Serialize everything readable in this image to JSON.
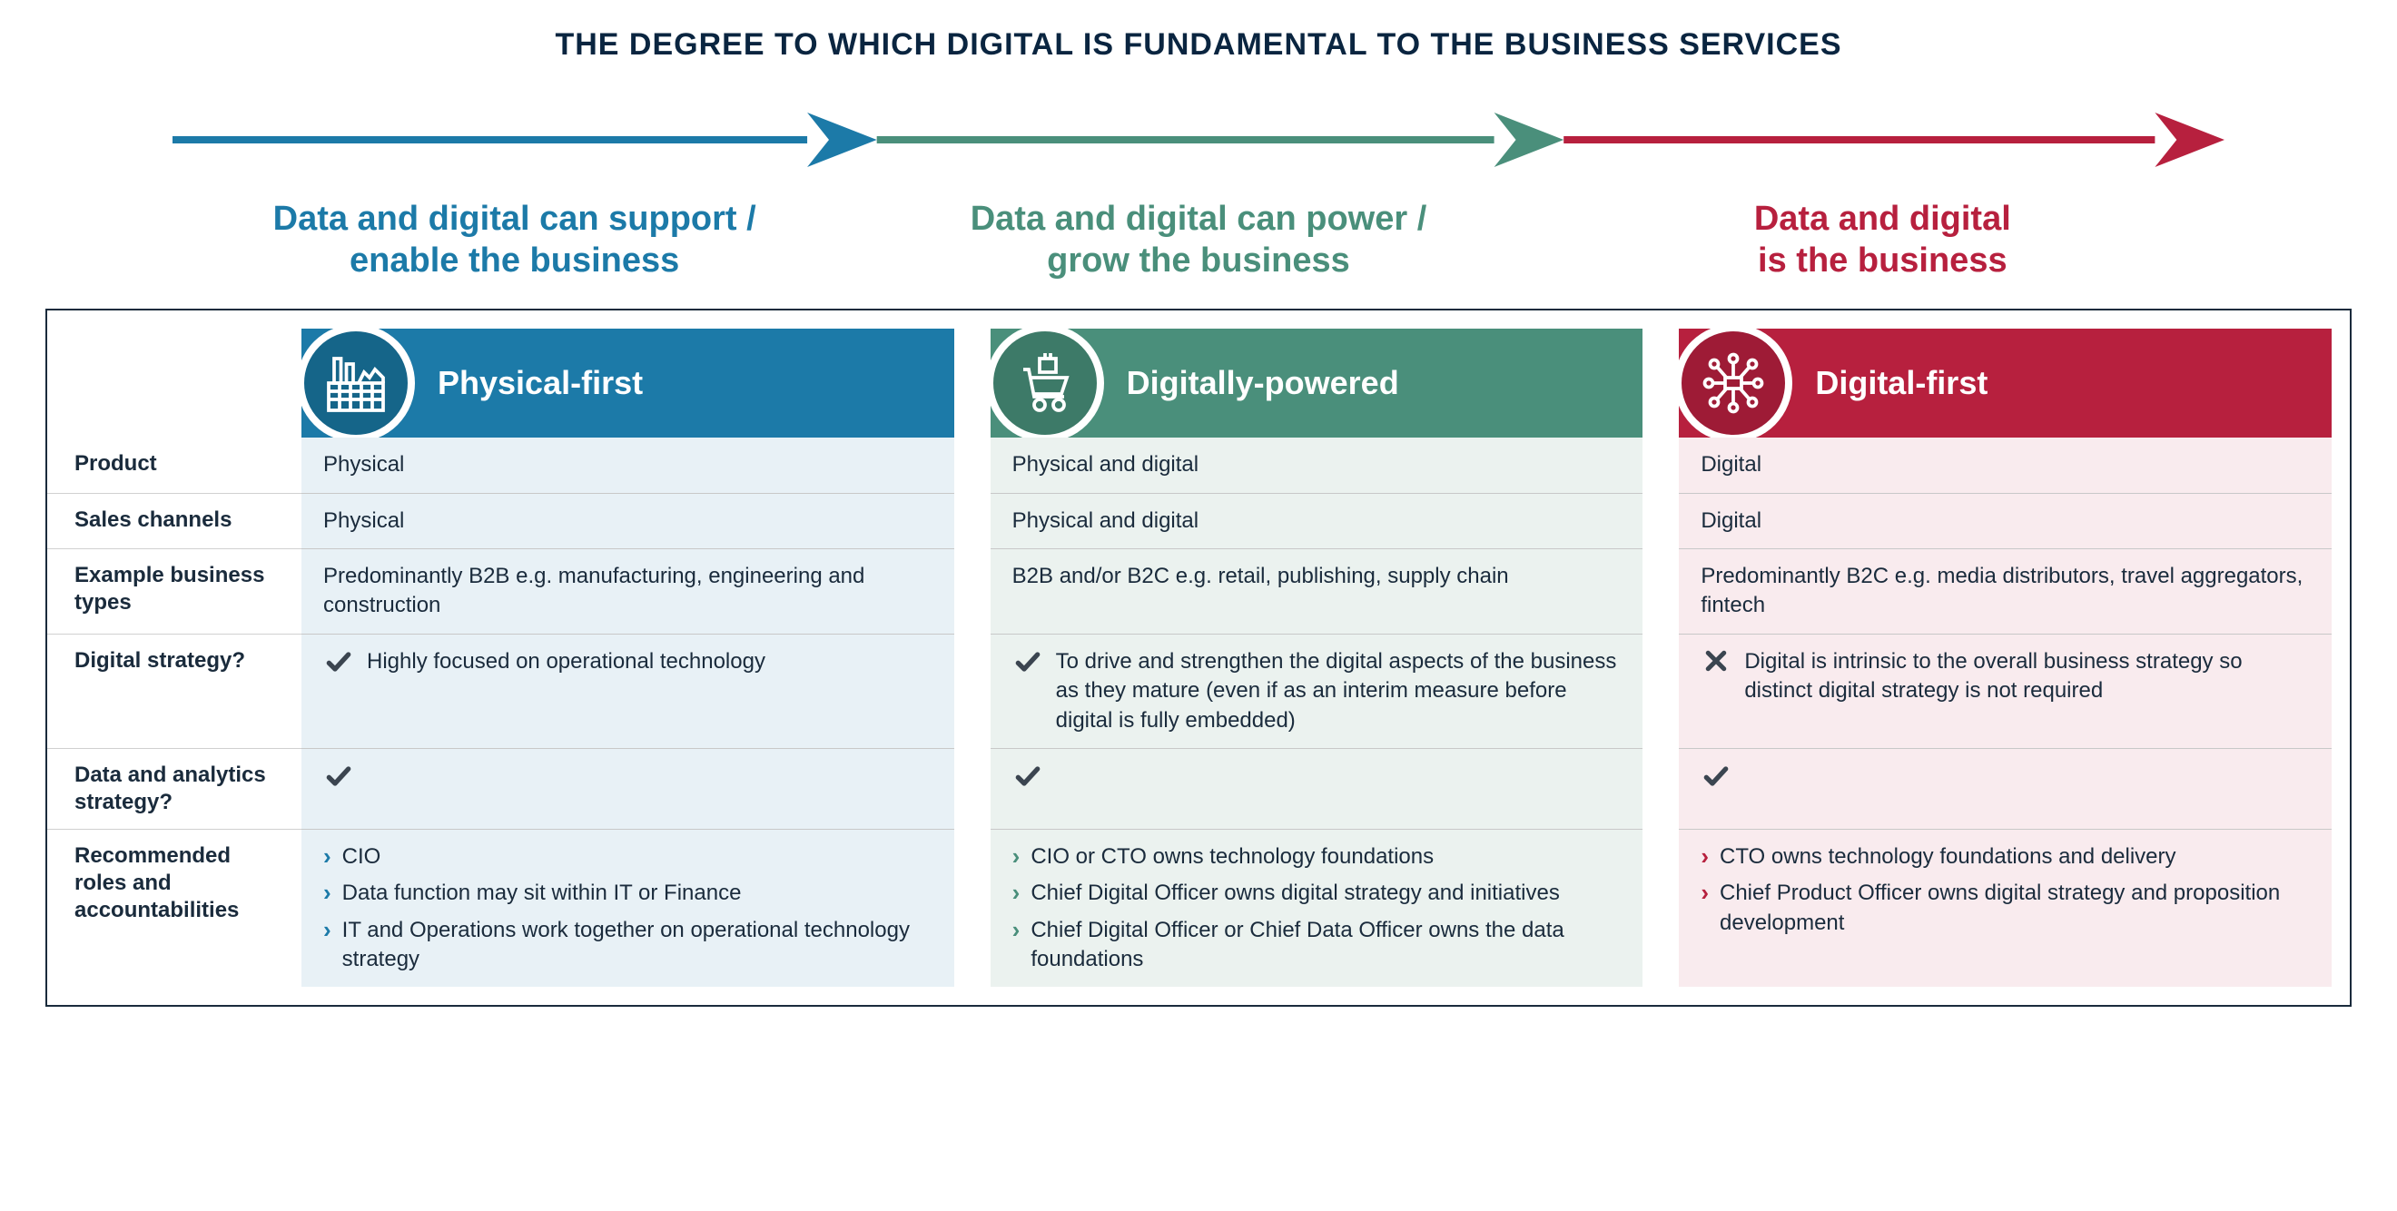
{
  "title": "THE DEGREE TO WHICH DIGITAL IS FUNDAMENTAL TO THE BUSINESS SERVICES",
  "colors": {
    "blue": "#1c7aa8",
    "blue_dark": "#156589",
    "green": "#4a8f7b",
    "green_dark": "#3d7a68",
    "red": "#b7203e",
    "red_dark": "#9e1b36",
    "text_dark": "#1a2b3c",
    "blue_tint": "#e8f1f6",
    "green_tint": "#ebf2ef",
    "red_tint": "#f9ebee",
    "check": "#3b4550",
    "cross": "#3b4550"
  },
  "subtitles": {
    "left_l1": "Data and digital can support /",
    "left_l2": "enable the business",
    "mid_l1": "Data and digital can power /",
    "mid_l2": "grow the business",
    "right_l1": "Data and digital",
    "right_l2": "is the business"
  },
  "columns": {
    "c1": {
      "label": "Physical-first",
      "icon": "factory"
    },
    "c2": {
      "label": "Digitally-powered",
      "icon": "cart"
    },
    "c3": {
      "label": "Digital-first",
      "icon": "network"
    }
  },
  "row_labels": {
    "product": "Product",
    "sales": "Sales channels",
    "examples": "Example business types",
    "strategy": "Digital strategy?",
    "data_strategy": "Data and analytics strategy?",
    "roles": "Recommended roles and accountabilities"
  },
  "cells": {
    "c1": {
      "product": "Physical",
      "sales": "Physical",
      "examples": "Predominantly B2B e.g. manufacturing, engineering and construction",
      "strategy_mark": "check",
      "strategy_text": "Highly focused on operational technology",
      "data_strategy_mark": "check",
      "roles": [
        "CIO",
        "Data function may sit within IT or Finance",
        "IT and Operations work together on operational technology strategy"
      ]
    },
    "c2": {
      "product": "Physical and digital",
      "sales": "Physical and digital",
      "examples": "B2B and/or B2C e.g. retail, publishing, supply chain",
      "strategy_mark": "check",
      "strategy_text": "To drive and strengthen the digital aspects of the business as they mature (even if as an interim measure before digital is fully embedded)",
      "data_strategy_mark": "check",
      "roles": [
        "CIO or CTO owns technology foundations",
        "Chief Digital Officer owns digital strategy and initiatives",
        "Chief Digital Officer or Chief Data Officer owns the data foundations"
      ]
    },
    "c3": {
      "product": "Digital",
      "sales": "Digital",
      "examples": "Predominantly B2C e.g. media distributors, travel aggregators, fintech",
      "strategy_mark": "cross",
      "strategy_text": "Digital is intrinsic to the overall business strategy so distinct digital strategy is not required",
      "data_strategy_mark": "check",
      "roles": [
        "CTO owns technology foundations and delivery",
        "Chief Product Officer owns digital strategy and proposition development"
      ]
    }
  }
}
